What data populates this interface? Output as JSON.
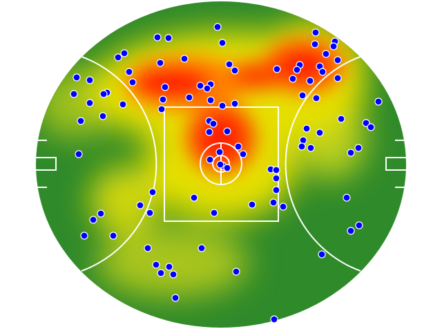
{
  "chart_data": {
    "type": "scatter",
    "color": "#0000ff",
    "xlim": [
      0,
      536
    ],
    "ylim": [
      0,
      472
    ],
    "x": [
      263,
      176,
      192,
      270,
      405,
      433,
      404,
      431,
      128,
      119,
      420,
      215,
      437,
      180,
      280,
      288,
      382,
      349,
      411,
      378,
      415,
      135,
      59,
      78,
      140,
      372,
      397,
      437,
      187,
      238,
      253,
      248,
      103,
      98,
      55,
      386,
      406,
      222,
      184,
      253,
      78,
      126,
      288,
      270,
      182,
      496,
      97,
      65,
      251,
      257,
      442,
      478,
      485,
      392,
      411,
      277,
      251,
      387,
      385,
      398,
      293,
      467,
      456,
      300,
      266,
      62,
      252,
      271,
      277,
      267,
      340,
      348,
      348,
      348,
      169,
      229,
      450,
      344,
      358,
      313,
      151,
      94,
      165,
      258,
      83,
      468,
      456,
      70,
      112,
      162,
      240,
      414,
      174,
      193,
      181,
      199,
      290,
      202,
      345
    ],
    "y": [
      435,
      420,
      419,
      412,
      427,
      414,
      410,
      407,
      397,
      391,
      396,
      389,
      387,
      383,
      381,
      372,
      380,
      374,
      378,
      373,
      370,
      370,
      362,
      358,
      355,
      360,
      357,
      361,
      348,
      350,
      352,
      346,
      340,
      338,
      338,
      336,
      332,
      333,
      330,
      329,
      325,
      323,
      324,
      321,
      316,
      327,
      306,
      299,
      299,
      295,
      302,
      296,
      290,
      288,
      282,
      284,
      283,
      271,
      262,
      260,
      262,
      260,
      253,
      251,
      254,
      251,
      243,
      234,
      231,
      236,
      229,
      228,
      216,
      199,
      196,
      188,
      188,
      181,
      175,
      178,
      177,
      165,
      166,
      166,
      156,
      148,
      140,
      133,
      133,
      115,
      115,
      106,
      91,
      88,
      79,
      77,
      81,
      43,
      12
    ]
  }
}
